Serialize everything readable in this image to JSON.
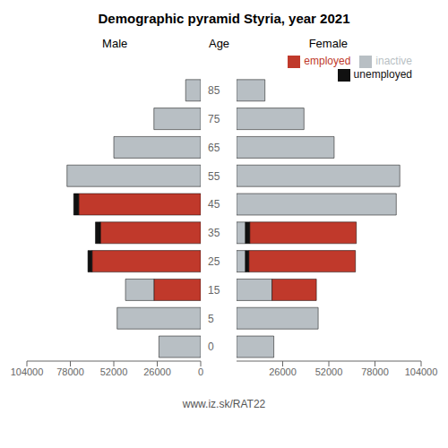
{
  "chart_data": [
    {
      "type": "bar",
      "orientation": "horizontal",
      "stacked": true,
      "title": "Demographic pyramid Styria, year 2021",
      "subtitle": "Male",
      "y_label": "Age",
      "categories": [
        "85",
        "75",
        "65",
        "55",
        "45",
        "35",
        "25",
        "15",
        "5",
        "0"
      ],
      "series": [
        {
          "name": "employed",
          "color": "#c0392b",
          "values": [
            0,
            0,
            0,
            0,
            73000,
            60000,
            65000,
            28000,
            0,
            0
          ]
        },
        {
          "name": "unemployed",
          "color": "#111111",
          "values": [
            0,
            0,
            0,
            0,
            3000,
            3000,
            2500,
            0,
            0,
            0
          ]
        },
        {
          "name": "inactive",
          "color": "#b8bfc4",
          "values": [
            9000,
            28000,
            52000,
            80000,
            0,
            0,
            0,
            17000,
            50000,
            25000
          ]
        }
      ],
      "xlim": [
        104000,
        0
      ],
      "xticks": [
        0,
        26000,
        52000,
        78000,
        104000
      ]
    },
    {
      "type": "bar",
      "orientation": "horizontal",
      "stacked": true,
      "subtitle": "Female",
      "categories": [
        "85",
        "75",
        "65",
        "55",
        "45",
        "35",
        "25",
        "15",
        "5",
        "0"
      ],
      "series": [
        {
          "name": "inactive",
          "color": "#b8bfc4",
          "values": [
            16000,
            38000,
            55000,
            92000,
            90000,
            5000,
            5000,
            20000,
            46000,
            21000
          ]
        },
        {
          "name": "unemployed",
          "color": "#111111",
          "values": [
            0,
            0,
            0,
            0,
            0,
            2500,
            2000,
            0,
            0,
            0
          ]
        },
        {
          "name": "employed",
          "color": "#c0392b",
          "values": [
            0,
            0,
            0,
            0,
            0,
            60000,
            60000,
            25000,
            0,
            0
          ]
        }
      ],
      "xlim": [
        0,
        104000
      ],
      "xticks": [
        0,
        26000,
        52000,
        78000,
        104000
      ],
      "legend": "upper right",
      "annotations": [
        "www.iz.sk/RAT22"
      ]
    }
  ]
}
